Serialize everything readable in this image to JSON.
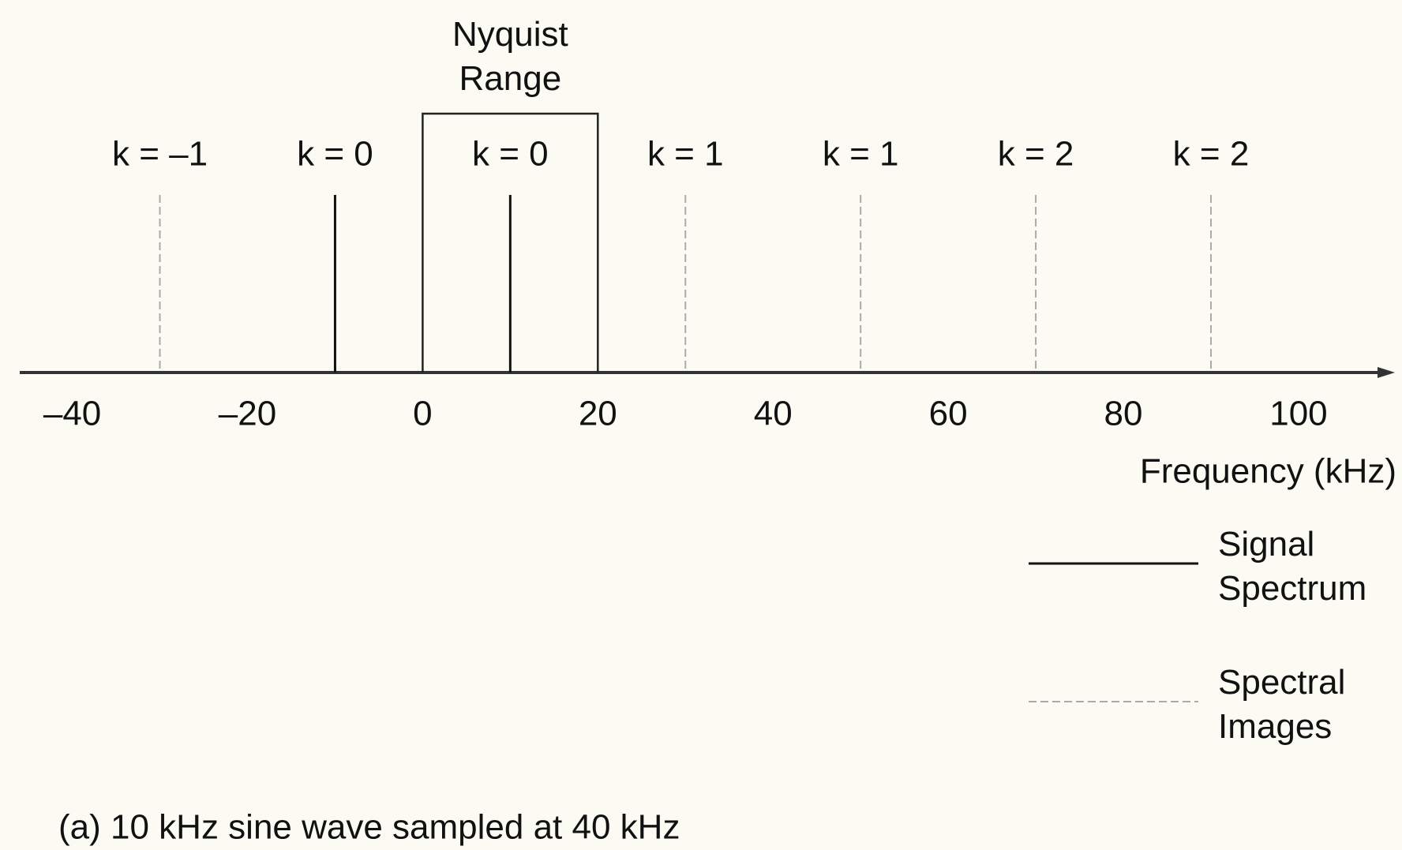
{
  "chart_data": {
    "type": "stem",
    "caption": "(a) 10 kHz sine wave sampled at 40 kHz",
    "x_label": "Frequency (kHz)",
    "xlim": [
      -46,
      111
    ],
    "xticks": [
      {
        "value": -40,
        "label": "–40"
      },
      {
        "value": -20,
        "label": "–20"
      },
      0,
      20,
      40,
      60,
      80,
      100
    ],
    "band": {
      "label": "Nyquist Range",
      "range": [
        0,
        20
      ]
    },
    "series": [
      {
        "name": "Signal Spectrum",
        "color": "#111111",
        "dashed": false,
        "x": [
          -10,
          10
        ],
        "labels": [
          "k = 0",
          "k = 0"
        ]
      },
      {
        "name": "Spectral Images",
        "color": "#aaaaaa",
        "dashed": true,
        "x": [
          -30,
          30,
          50,
          70,
          90
        ],
        "labels": [
          "k = –1",
          "k = 1",
          "k = 1",
          "k = 2",
          "k = 2"
        ]
      }
    ]
  }
}
